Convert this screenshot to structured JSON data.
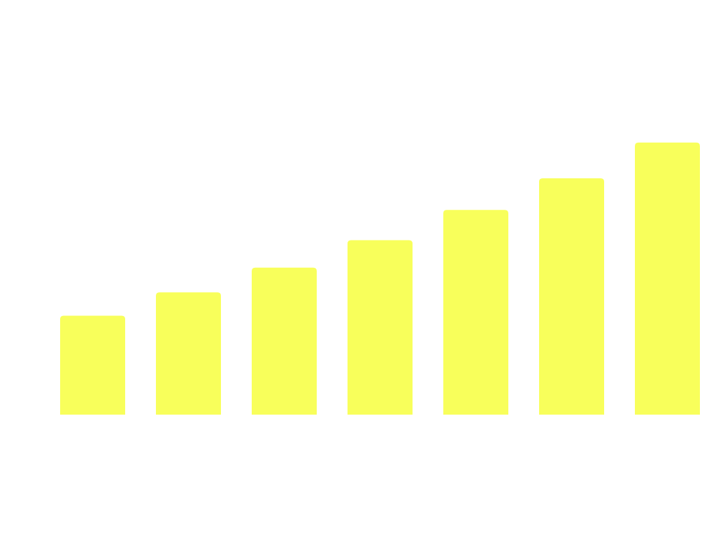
{
  "chart_data": {
    "type": "bar",
    "categories": [
      "",
      "",
      "",
      "",
      "",
      "",
      ""
    ],
    "values": [
      36,
      44.5,
      53.5,
      63.5,
      74.5,
      86,
      99
    ],
    "ylim": [
      0,
      100
    ],
    "grid": false,
    "legend": "none",
    "colors": {
      "bar": "#f8ff5b",
      "background": "#ffffff"
    }
  }
}
